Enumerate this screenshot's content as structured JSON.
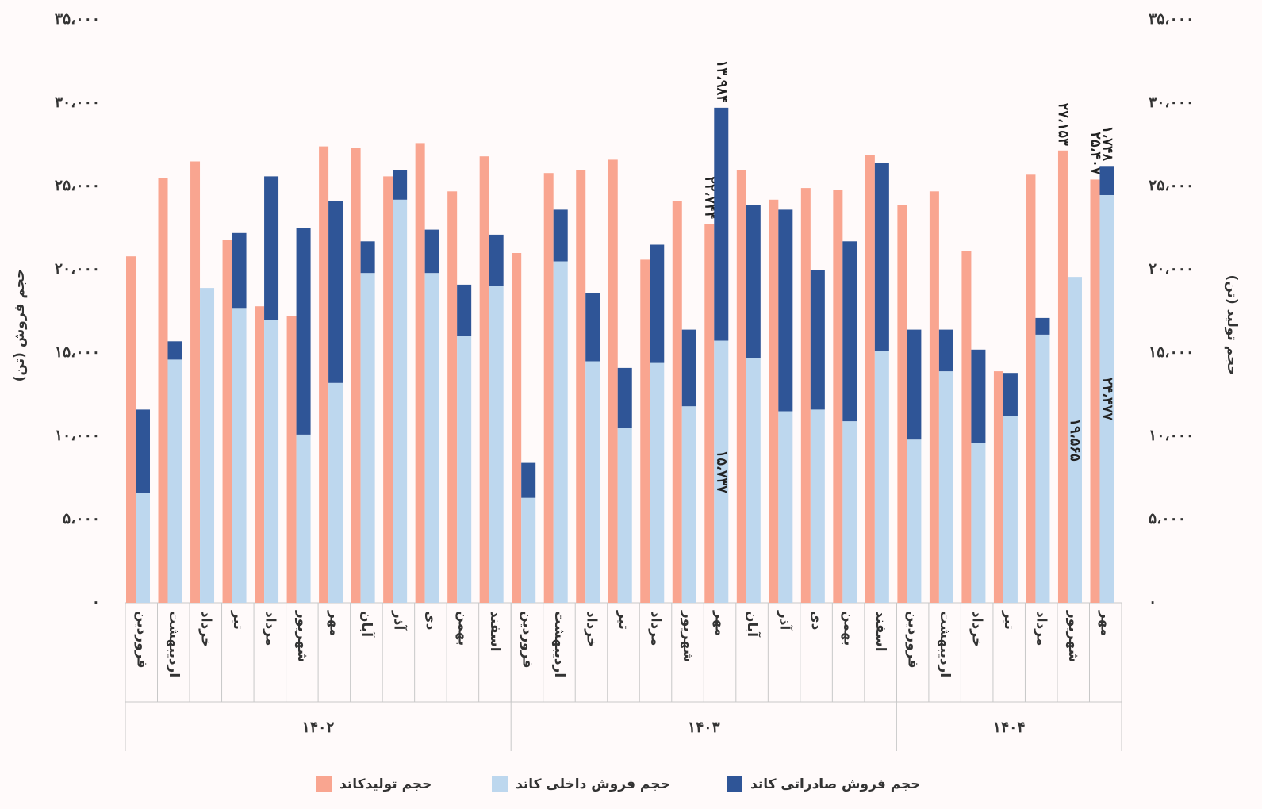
{
  "chart_data": {
    "type": "bar",
    "stacked": true,
    "y_label": "حجم فروش (تن)",
    "y2_label": "حجم تولید (تن)",
    "groups": [
      {
        "name": "۱۴۰۲",
        "categories": [
          "فروردین",
          "اردیبهشت",
          "خرداد",
          "تیر",
          "مرداد",
          "شهریور",
          "مهر",
          "آبان",
          "آذر",
          "دی",
          "بهمن",
          "اسفند"
        ]
      },
      {
        "name": "۱۴۰۳",
        "categories": [
          "فروردین",
          "اردیبهشت",
          "خرداد",
          "تیر",
          "مرداد",
          "شهریور",
          "مهر",
          "آبان",
          "آذر",
          "دی",
          "بهمن",
          "اسفند"
        ]
      },
      {
        "name": "۱۴۰۴",
        "categories": [
          "فروردین",
          "اردیبهشت",
          "خرداد",
          "تیر",
          "مرداد",
          "شهریور",
          "مهر"
        ]
      }
    ],
    "series": [
      {
        "name": "حجم تولیدکاتد",
        "color": "#f9a590",
        "axis": "y2",
        "values": [
          20800,
          25500,
          26500,
          21800,
          17800,
          17200,
          27400,
          27300,
          25600,
          27600,
          24700,
          26800,
          21000,
          25800,
          26000,
          26600,
          20600,
          24100,
          22744,
          26000,
          24200,
          24900,
          24800,
          26900,
          23900,
          24700,
          21100,
          13900,
          25700,
          27153,
          25407
        ],
        "value_labels": [
          null,
          null,
          null,
          null,
          null,
          null,
          null,
          null,
          null,
          null,
          null,
          null,
          null,
          null,
          null,
          null,
          null,
          null,
          "۲۲،۷۴۴",
          null,
          null,
          null,
          null,
          null,
          null,
          null,
          null,
          null,
          null,
          "۲۷،۱۵۳",
          "۲۵،۴۰۷"
        ]
      },
      {
        "name": "حجم فروش داخلی کاتد",
        "color": "#bdd7ee",
        "values": [
          6600,
          14600,
          18900,
          17700,
          17000,
          10100,
          13200,
          19800,
          24200,
          19800,
          16000,
          19000,
          6300,
          20500,
          14500,
          10500,
          14400,
          11800,
          15737,
          14700,
          11500,
          11600,
          10900,
          15100,
          9800,
          13900,
          9600,
          11200,
          16100,
          19565,
          24477
        ],
        "value_labels": [
          null,
          null,
          null,
          null,
          null,
          null,
          null,
          null,
          null,
          null,
          null,
          null,
          null,
          null,
          null,
          null,
          null,
          null,
          "۱۵،۷۳۷",
          null,
          null,
          null,
          null,
          null,
          null,
          null,
          null,
          null,
          null,
          "۱۹،۵۶۵",
          "۲۴،۴۷۷"
        ]
      },
      {
        "name": "حجم فروش صادراتی کاتد",
        "color": "#2f5597",
        "values": [
          5000,
          1100,
          0,
          4500,
          8600,
          12400,
          10900,
          1900,
          1800,
          2600,
          3100,
          3100,
          2100,
          3100,
          4100,
          3600,
          7100,
          4600,
          13984,
          9200,
          12100,
          8400,
          10800,
          11300,
          6600,
          2500,
          5600,
          2600,
          1000,
          0,
          1748
        ],
        "value_labels": [
          null,
          null,
          null,
          null,
          null,
          null,
          null,
          null,
          null,
          null,
          null,
          null,
          null,
          null,
          null,
          null,
          null,
          null,
          "۱۳،۹۸۴",
          null,
          null,
          null,
          null,
          null,
          null,
          null,
          null,
          null,
          null,
          null,
          "۱،۷۴۸"
        ]
      }
    ],
    "ylim": [
      0,
      35000
    ],
    "yticks": [
      {
        "value": 0,
        "label": "۰"
      },
      {
        "value": 5000,
        "label": "۵،۰۰۰"
      },
      {
        "value": 10000,
        "label": "۱۰،۰۰۰"
      },
      {
        "value": 15000,
        "label": "۱۵،۰۰۰"
      },
      {
        "value": 20000,
        "label": "۲۰،۰۰۰"
      },
      {
        "value": 25000,
        "label": "۲۵،۰۰۰"
      },
      {
        "value": 30000,
        "label": "۳۰،۰۰۰"
      },
      {
        "value": 35000,
        "label": "۳۵،۰۰۰"
      }
    ],
    "y2lim": [
      0,
      35000
    ],
    "y2ticks": [
      {
        "value": 0,
        "label": "۰"
      },
      {
        "value": 5000,
        "label": "۵،۰۰۰"
      },
      {
        "value": 10000,
        "label": "۱۰،۰۰۰"
      },
      {
        "value": 15000,
        "label": "۱۵،۰۰۰"
      },
      {
        "value": 20000,
        "label": "۲۰،۰۰۰"
      },
      {
        "value": 25000,
        "label": "۲۵،۰۰۰"
      },
      {
        "value": 30000,
        "label": "۳۰،۰۰۰"
      },
      {
        "value": 35000,
        "label": "۳۵،۰۰۰"
      }
    ],
    "grid": false,
    "legend": "bottom"
  }
}
